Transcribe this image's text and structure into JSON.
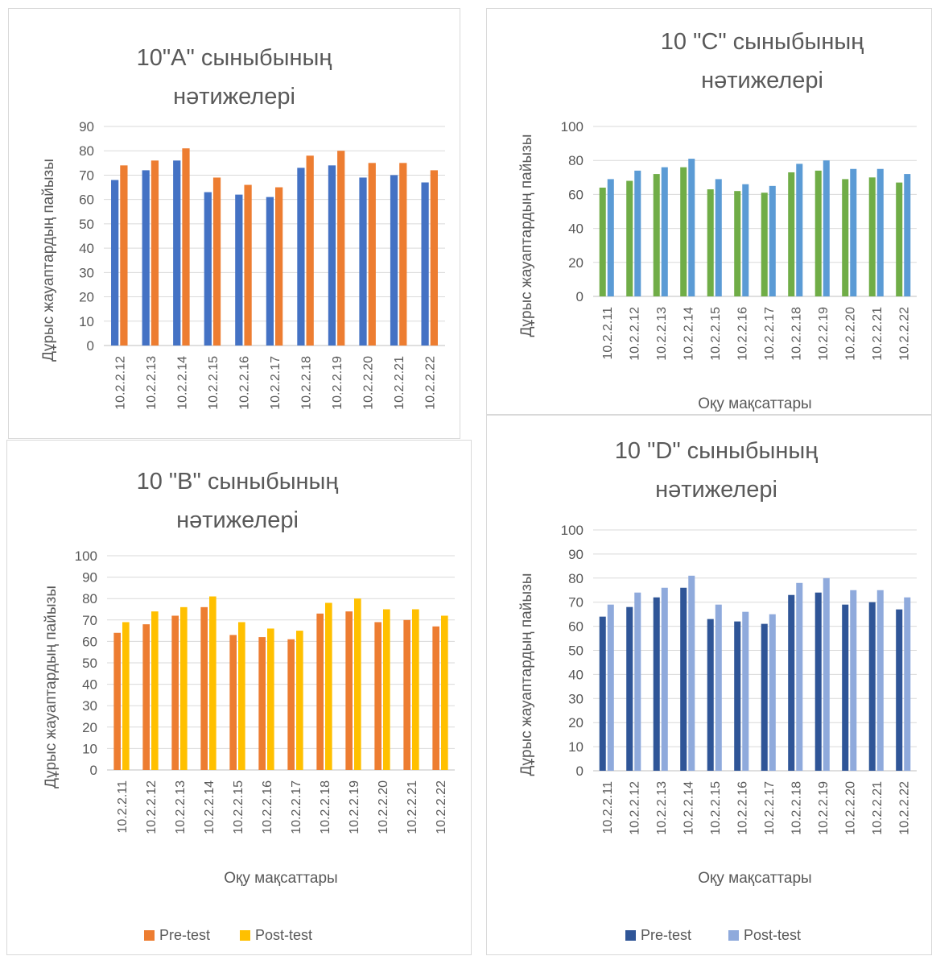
{
  "chart_data": [
    {
      "id": "A",
      "type": "bar",
      "title_lines": [
        "10\"A\" сыныбының",
        "нәтижелері"
      ],
      "ylabel": "Дұрыс жауаптардың пайызы",
      "xlabel": "",
      "ylim": [
        0,
        90
      ],
      "yticks": [
        0,
        10,
        20,
        30,
        40,
        50,
        60,
        70,
        80,
        90
      ],
      "categories": [
        "10.2.2.12",
        "10.2.2.13",
        "10.2.2.14",
        "10.2.2.15",
        "10.2.2.16",
        "10.2.2.17",
        "10.2.2.18",
        "10.2.2.19",
        "10.2.2.20",
        "10.2.2.21",
        "10.2.2.22"
      ],
      "series": [
        {
          "values": [
            68,
            72,
            76,
            63,
            62,
            61,
            73,
            74,
            69,
            70,
            67
          ],
          "color": "#4472c4"
        },
        {
          "values": [
            74,
            76,
            81,
            69,
            66,
            65,
            78,
            80,
            75,
            75,
            72
          ],
          "color": "#ed7d31"
        }
      ],
      "grid": true,
      "legend": []
    },
    {
      "id": "C",
      "type": "bar",
      "title_lines": [
        "10 \"C\" сыныбының",
        "нәтижелері"
      ],
      "ylabel": "Дұрыс жауаптардың пайызы",
      "xlabel": "Оқу мақсаттары",
      "ylim": [
        0,
        100
      ],
      "yticks": [
        0,
        20,
        40,
        60,
        80,
        100
      ],
      "categories": [
        "10.2.2.11",
        "10.2.2.12",
        "10.2.2.13",
        "10.2.2.14",
        "10.2.2.15",
        "10.2.2.16",
        "10.2.2.17",
        "10.2.2.18",
        "10.2.2.19",
        "10.2.2.20",
        "10.2.2.21",
        "10.2.2.22"
      ],
      "series": [
        {
          "values": [
            64,
            68,
            72,
            76,
            63,
            62,
            61,
            73,
            74,
            69,
            70,
            67
          ],
          "color": "#70ad47"
        },
        {
          "values": [
            69,
            74,
            76,
            81,
            69,
            66,
            65,
            78,
            80,
            75,
            75,
            72
          ],
          "color": "#5b9bd5"
        }
      ],
      "grid": true,
      "legend": []
    },
    {
      "id": "B",
      "type": "bar",
      "title_lines": [
        "10 \"B\" сыныбының",
        "нәтижелері"
      ],
      "ylabel": "Дұрыс жауаптардың пайызы",
      "xlabel": "Оқу мақсаттары",
      "ylim": [
        0,
        100
      ],
      "yticks": [
        0,
        10,
        20,
        30,
        40,
        50,
        60,
        70,
        80,
        90,
        100
      ],
      "categories": [
        "10.2.2.11",
        "10.2.2.12",
        "10.2.2.13",
        "10.2.2.14",
        "10.2.2.15",
        "10.2.2.16",
        "10.2.2.17",
        "10.2.2.18",
        "10.2.2.19",
        "10.2.2.20",
        "10.2.2.21",
        "10.2.2.22"
      ],
      "series": [
        {
          "name": "Pre-test",
          "values": [
            64,
            68,
            72,
            76,
            63,
            62,
            61,
            73,
            74,
            69,
            70,
            67
          ],
          "color": "#ed7d31"
        },
        {
          "name": "Post-test",
          "values": [
            69,
            74,
            76,
            81,
            69,
            66,
            65,
            78,
            80,
            75,
            75,
            72
          ],
          "color": "#ffc000"
        }
      ],
      "grid": true,
      "legend": [
        "Pre-test",
        "Post-test"
      ]
    },
    {
      "id": "D",
      "type": "bar",
      "title_lines": [
        "10 \"D\" сыныбының",
        "нәтижелері"
      ],
      "ylabel": "Дұрыс жауаптардың пайызы",
      "xlabel": "Оқу мақсаттары",
      "ylim": [
        0,
        100
      ],
      "yticks": [
        0,
        10,
        20,
        30,
        40,
        50,
        60,
        70,
        80,
        90,
        100
      ],
      "categories": [
        "10.2.2.11",
        "10.2.2.12",
        "10.2.2.13",
        "10.2.2.14",
        "10.2.2.15",
        "10.2.2.16",
        "10.2.2.17",
        "10.2.2.18",
        "10.2.2.19",
        "10.2.2.20",
        "10.2.2.21",
        "10.2.2.22"
      ],
      "series": [
        {
          "name": "Pre-test",
          "values": [
            64,
            68,
            72,
            76,
            63,
            62,
            61,
            73,
            74,
            69,
            70,
            67
          ],
          "color": "#2f5597"
        },
        {
          "name": "Post-test",
          "values": [
            69,
            74,
            76,
            81,
            69,
            66,
            65,
            78,
            80,
            75,
            75,
            72
          ],
          "color": "#8faadc"
        }
      ],
      "grid": true,
      "legend": [
        "Pre-test",
        "Post-test"
      ]
    }
  ]
}
